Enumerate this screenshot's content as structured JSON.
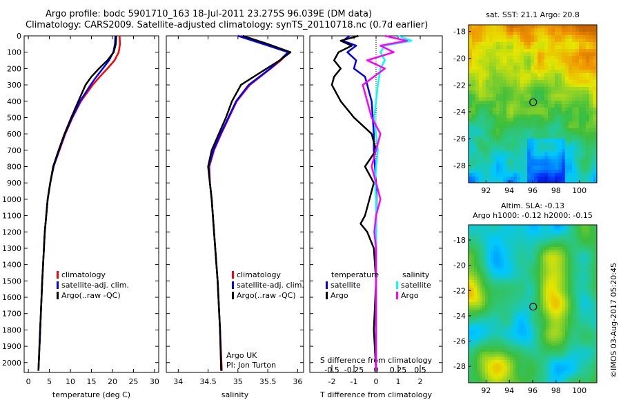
{
  "title_line1": "Argo profile: bodc 5901710_163 18-Jul-2011 23.275S 96.039E (DM data)",
  "title_line2": "Climatology: CARS2009. Satellite-adjusted climatology: synTS_20110718.nc (0.7d earlier)",
  "credit": "©IMOS 03-Aug-2017 05:20:45",
  "colors": {
    "climatology": "#ff0000",
    "satellite": "#0000ff",
    "argo": "#000000",
    "sal_satellite": "#00ffff",
    "sal_argo": "#ff00ff"
  },
  "chart_data": [
    {
      "id": "temperature",
      "type": "line",
      "xlabel": "temperature (deg C)",
      "xlim": [
        -1,
        31
      ],
      "xticks": [
        0,
        5,
        10,
        15,
        20,
        25,
        30
      ],
      "ylim": [
        0,
        2060
      ],
      "yticks": [
        0,
        100,
        200,
        300,
        400,
        500,
        600,
        700,
        800,
        900,
        1000,
        1100,
        1200,
        1300,
        1400,
        1500,
        1600,
        1700,
        1800,
        1900,
        2000
      ],
      "legend": [
        "climatology",
        "satellite-adj. clim.",
        "Argo(..raw -QC)"
      ],
      "series": [
        {
          "name": "climatology",
          "color": "#ff0000",
          "depth": [
            0,
            50,
            100,
            150,
            200,
            250,
            300,
            400,
            500,
            600,
            700,
            800,
            900,
            1000,
            1200,
            1500,
            1800,
            2050
          ],
          "values": [
            21.7,
            21.8,
            21.5,
            20.5,
            18.8,
            17.0,
            15.3,
            12.5,
            10.5,
            8.8,
            7.4,
            6.0,
            5.2,
            4.6,
            3.9,
            3.3,
            2.8,
            2.4
          ]
        },
        {
          "name": "satellite-adj. clim.",
          "color": "#0000ff",
          "depth": [
            0,
            50,
            100,
            150,
            200,
            250,
            300,
            400,
            500,
            600,
            700,
            800,
            900,
            1000,
            1200,
            1500,
            1800,
            2050
          ],
          "values": [
            20.7,
            20.6,
            20.2,
            19.2,
            17.7,
            16.2,
            14.8,
            12.3,
            10.4,
            8.7,
            7.3,
            6.0,
            5.2,
            4.6,
            3.9,
            3.3,
            2.8,
            2.4
          ]
        },
        {
          "name": "Argo(..raw -QC)",
          "color": "#000000",
          "depth": [
            0,
            50,
            100,
            150,
            200,
            250,
            300,
            400,
            500,
            600,
            700,
            800,
            900,
            1000,
            1200,
            1500,
            1800,
            2050
          ],
          "values": [
            20.9,
            20.8,
            20.3,
            18.8,
            16.8,
            15.0,
            13.6,
            11.9,
            10.2,
            8.6,
            7.2,
            5.9,
            5.2,
            4.6,
            3.9,
            3.3,
            2.8,
            2.4
          ]
        }
      ]
    },
    {
      "id": "salinity",
      "type": "line",
      "xlabel": "salinity",
      "xlim": [
        33.8,
        36.1
      ],
      "xticks": [
        34,
        34.5,
        35,
        35.5,
        36
      ],
      "xticklabels": [
        "34",
        "34.5",
        "35",
        "35.5",
        "36"
      ],
      "ylim": [
        0,
        2060
      ],
      "legend": [
        "climatology",
        "satellite-adj. clim.",
        "Argo(..raw -QC)"
      ],
      "note_line1": "Argo UK",
      "note_line2": "PI: Jon Turton",
      "series": [
        {
          "name": "climatology",
          "color": "#ff0000",
          "depth": [
            0,
            50,
            100,
            150,
            200,
            300,
            400,
            500,
            600,
            700,
            800,
            900,
            1000,
            1200,
            1500,
            1800,
            2050
          ],
          "values": [
            35.05,
            35.45,
            35.85,
            35.72,
            35.55,
            35.2,
            34.98,
            34.85,
            34.72,
            34.6,
            34.52,
            34.53,
            34.56,
            34.6,
            34.66,
            34.7,
            34.73
          ]
        },
        {
          "name": "satellite-adj. clim.",
          "color": "#0000ff",
          "depth": [
            0,
            50,
            100,
            150,
            200,
            300,
            400,
            500,
            600,
            700,
            800,
            900,
            1000,
            1200,
            1500,
            1800,
            2050
          ],
          "values": [
            35.0,
            35.42,
            35.84,
            35.7,
            35.54,
            35.18,
            34.97,
            34.84,
            34.71,
            34.59,
            34.51,
            34.53,
            34.56,
            34.6,
            34.66,
            34.7,
            34.72
          ]
        },
        {
          "name": "Argo(..raw -QC)",
          "color": "#000000",
          "depth": [
            0,
            50,
            100,
            150,
            200,
            300,
            400,
            500,
            600,
            700,
            800,
            900,
            1000,
            1200,
            1500,
            1800,
            2050
          ],
          "values": [
            35.08,
            35.5,
            35.88,
            35.7,
            35.48,
            35.05,
            34.9,
            34.8,
            34.68,
            34.56,
            34.5,
            34.53,
            34.56,
            34.6,
            34.66,
            34.7,
            34.72
          ]
        }
      ]
    },
    {
      "id": "difference",
      "type": "line",
      "xlabel": "T difference from climatology",
      "x2label": "S difference from climatology",
      "xlim": [
        -3,
        3
      ],
      "xticks": [
        -2,
        -1,
        0,
        1,
        2
      ],
      "x2lim": [
        -0.75,
        0.75
      ],
      "x2ticks": [
        -0.5,
        -0.25,
        0,
        0.25,
        0.5
      ],
      "x2ticklabels": [
        "-0.5",
        "-0.25",
        "0",
        "0.25",
        "0.5"
      ],
      "ylim": [
        0,
        2060
      ],
      "legend_temp_title": "temperature",
      "legend_sal_title": "salinity",
      "legend_items": [
        "satellite",
        "Argo",
        "satellite",
        "Argo"
      ],
      "series": [
        {
          "name": "satellite",
          "quantity": "temperature",
          "axis": "T",
          "color": "#0000ff",
          "depth": [
            0,
            30,
            60,
            100,
            150,
            200,
            250,
            300,
            400,
            500,
            600,
            700,
            800,
            900,
            1000,
            1200,
            1500,
            1800,
            2050
          ],
          "values": [
            -1.2,
            -1.5,
            -0.9,
            -1.3,
            -0.9,
            -1.0,
            -0.5,
            -0.4,
            -0.2,
            -0.15,
            -0.1,
            -0.1,
            -0.05,
            0,
            0.02,
            0,
            0,
            0,
            0
          ]
        },
        {
          "name": "Argo",
          "quantity": "temperature",
          "axis": "T",
          "color": "#000000",
          "depth": [
            0,
            30,
            60,
            100,
            150,
            200,
            250,
            300,
            400,
            500,
            600,
            700,
            800,
            900,
            1000,
            1100,
            1150,
            1200,
            1300,
            1500,
            1800,
            2050
          ],
          "values": [
            -0.8,
            -1.6,
            -1.1,
            -1.7,
            -1.9,
            -1.6,
            -1.9,
            -2.0,
            -1.6,
            -1.0,
            -0.2,
            0,
            -0.5,
            -0.1,
            -0.3,
            -0.5,
            -0.7,
            -0.4,
            -0.1,
            0,
            -0.1,
            0
          ]
        },
        {
          "name": "satellite",
          "quantity": "salinity",
          "axis": "S",
          "color": "#00ffff",
          "depth": [
            0,
            30,
            60,
            100,
            150,
            200,
            300,
            400,
            500,
            600,
            700,
            800,
            900,
            1000,
            1200,
            1500,
            1800,
            2050
          ],
          "values": [
            0.25,
            0.4,
            0.1,
            0.05,
            0.1,
            0.05,
            0.02,
            0.0,
            -0.02,
            0.0,
            0.02,
            0.0,
            -0.01,
            0.0,
            0.0,
            0.0,
            0.0,
            0.0
          ]
        },
        {
          "name": "Argo",
          "quantity": "salinity",
          "axis": "S",
          "color": "#ff00ff",
          "depth": [
            0,
            30,
            60,
            100,
            150,
            200,
            300,
            400,
            500,
            600,
            700,
            800,
            900,
            1000,
            1100,
            1200,
            1300,
            1500,
            1800,
            2050
          ],
          "values": [
            0.1,
            0.35,
            0.05,
            0.2,
            -0.1,
            0.1,
            -0.15,
            -0.1,
            -0.05,
            0.05,
            0.0,
            -0.05,
            0.0,
            0.05,
            0.0,
            -0.02,
            0.0,
            0.0,
            0.0,
            0.0
          ]
        }
      ]
    },
    {
      "id": "sst-map",
      "type": "heatmap",
      "title": "sat. SST: 21.1  Argo: 20.8",
      "xlim": [
        90.5,
        101.5
      ],
      "ylim": [
        -29.3,
        -17.5
      ],
      "xticks": [
        92,
        94,
        96,
        98,
        100
      ],
      "yticks": [
        -18,
        -20,
        -22,
        -24,
        -26,
        -28
      ],
      "marker": {
        "lon": 96.04,
        "lat": -23.28
      }
    },
    {
      "id": "sla-map",
      "type": "heatmap",
      "title_line1": "Altim. SLA: -0.13",
      "title_line2": "Argo h1000: -0.12 h2000: -0.15",
      "xlim": [
        90.5,
        101.5
      ],
      "ylim": [
        -29.3,
        -16.8
      ],
      "xticks": [
        92,
        94,
        96,
        98,
        100
      ],
      "yticks": [
        -18,
        -20,
        -22,
        -24,
        -26,
        -28
      ],
      "marker": {
        "lon": 96.04,
        "lat": -23.28
      }
    }
  ]
}
